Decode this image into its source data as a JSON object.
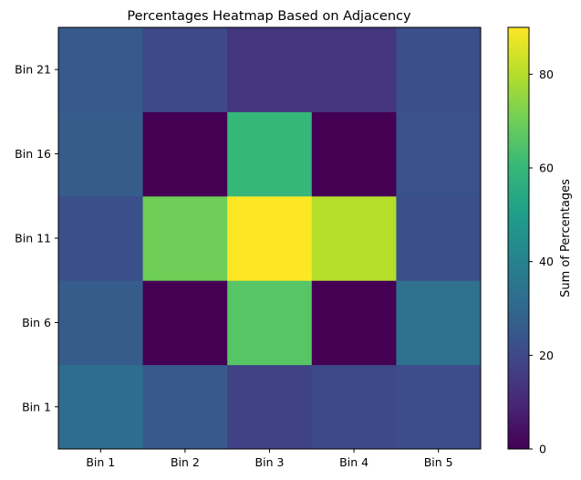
{
  "chart_data": {
    "type": "heatmap",
    "title": "Percentages Heatmap Based on Adjacency",
    "x_categories": [
      "Bin 1",
      "Bin 2",
      "Bin 3",
      "Bin 4",
      "Bin 5"
    ],
    "y_categories": [
      "Bin 1",
      "Bin 6",
      "Bin 11",
      "Bin 16",
      "Bin 21"
    ],
    "values": [
      [
        32,
        25,
        18,
        20,
        21
      ],
      [
        26,
        0,
        66,
        0,
        33
      ],
      [
        22,
        70,
        90,
        80,
        22
      ],
      [
        26,
        0,
        60,
        0,
        23
      ],
      [
        25,
        20,
        14,
        14,
        22
      ]
    ],
    "colorbar": {
      "label": "Sum of Percentages",
      "range": [
        0,
        90
      ],
      "ticks": [
        "0",
        "20",
        "40",
        "60",
        "80"
      ],
      "colormap": "viridis"
    },
    "grid": false
  }
}
